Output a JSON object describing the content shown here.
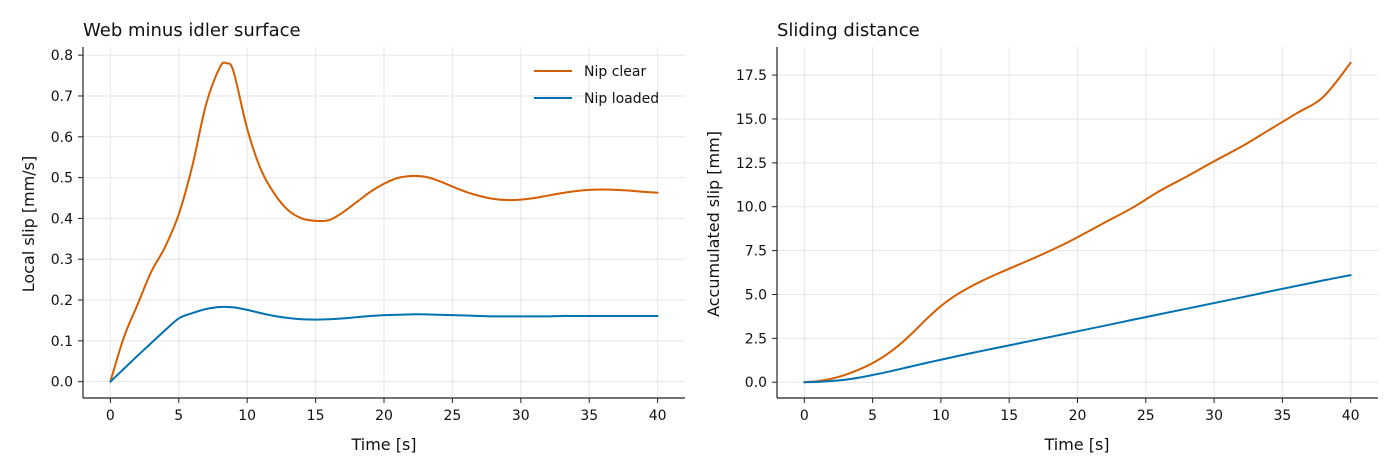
{
  "chart_data": [
    {
      "type": "line",
      "title": "Web minus idler surface",
      "xlabel": "Time [s]",
      "ylabel": "Local slip [mm/s]",
      "xlim": [
        -2,
        42
      ],
      "ylim": [
        -0.04,
        0.82
      ],
      "xticks": [
        0,
        5,
        10,
        15,
        20,
        25,
        30,
        35,
        40
      ],
      "yticks": [
        0.0,
        0.1,
        0.2,
        0.3,
        0.4,
        0.5,
        0.6,
        0.7,
        0.8
      ],
      "ytick_decimals": 1,
      "grid": true,
      "legend": "top-right",
      "series": [
        {
          "name": "Nip clear",
          "color": "#d55e00",
          "x": [
            0,
            1,
            2,
            3,
            4,
            5,
            6,
            7,
            8,
            8.5,
            9,
            10,
            11,
            12,
            13,
            14,
            15,
            16,
            17,
            18,
            19,
            20,
            21,
            22,
            23,
            24,
            25,
            26,
            27,
            28,
            29,
            30,
            31,
            32,
            33,
            34,
            35,
            36,
            37,
            38,
            39,
            40
          ],
          "y": [
            0.0,
            0.11,
            0.19,
            0.27,
            0.33,
            0.41,
            0.53,
            0.68,
            0.77,
            0.78,
            0.76,
            0.62,
            0.52,
            0.46,
            0.42,
            0.4,
            0.394,
            0.396,
            0.415,
            0.44,
            0.465,
            0.485,
            0.499,
            0.504,
            0.502,
            0.492,
            0.478,
            0.465,
            0.455,
            0.448,
            0.445,
            0.446,
            0.45,
            0.456,
            0.462,
            0.467,
            0.47,
            0.471,
            0.47,
            0.468,
            0.465,
            0.463
          ]
        },
        {
          "name": "Nip loaded",
          "color": "#0072b2",
          "x": [
            0,
            1,
            2,
            3,
            4,
            5,
            6,
            7,
            8,
            9,
            10,
            11,
            12,
            13,
            14,
            15,
            16,
            17,
            18,
            19,
            20,
            21,
            22,
            23,
            24,
            25,
            26,
            27,
            28,
            29,
            30,
            31,
            32,
            33,
            34,
            35,
            36,
            37,
            38,
            39,
            40
          ],
          "y": [
            0.0,
            0.032,
            0.064,
            0.095,
            0.126,
            0.155,
            0.168,
            0.178,
            0.183,
            0.182,
            0.176,
            0.168,
            0.161,
            0.156,
            0.153,
            0.152,
            0.153,
            0.155,
            0.158,
            0.161,
            0.163,
            0.164,
            0.165,
            0.165,
            0.164,
            0.163,
            0.162,
            0.161,
            0.16,
            0.16,
            0.16,
            0.16,
            0.16,
            0.161,
            0.161,
            0.161,
            0.161,
            0.161,
            0.161,
            0.161,
            0.161
          ]
        }
      ]
    },
    {
      "type": "line",
      "title": "Sliding distance",
      "xlabel": "Time [s]",
      "ylabel": "Accumulated slip [mm]",
      "xlim": [
        -2,
        42
      ],
      "ylim": [
        -0.9,
        19.1
      ],
      "xticks": [
        0,
        5,
        10,
        15,
        20,
        25,
        30,
        35,
        40
      ],
      "yticks": [
        0.0,
        2.5,
        5.0,
        7.5,
        10.0,
        12.5,
        15.0,
        17.5
      ],
      "ytick_decimals": 1,
      "grid": true,
      "legend": "none",
      "series": [
        {
          "name": "Nip clear",
          "color": "#d55e00",
          "x": [
            0,
            1,
            2,
            3,
            4,
            5,
            6,
            7,
            8,
            9,
            10,
            11,
            12,
            13,
            14,
            15,
            16,
            17,
            18,
            19,
            20,
            22,
            24,
            26,
            28,
            30,
            32,
            34,
            36,
            38,
            40
          ],
          "y": [
            0.0,
            0.06,
            0.2,
            0.42,
            0.72,
            1.09,
            1.56,
            2.16,
            2.87,
            3.64,
            4.34,
            4.91,
            5.37,
            5.77,
            6.13,
            6.47,
            6.8,
            7.14,
            7.49,
            7.86,
            8.26,
            9.1,
            9.93,
            10.89,
            11.72,
            12.59,
            13.42,
            14.36,
            15.3,
            16.26,
            18.2
          ]
        },
        {
          "name": "Nip loaded",
          "color": "#0072b2",
          "x": [
            0,
            1,
            2,
            3,
            4,
            5,
            6,
            7,
            8,
            9,
            10,
            12,
            14,
            16,
            18,
            20,
            22,
            24,
            26,
            28,
            30,
            32,
            34,
            36,
            38,
            40
          ],
          "y": [
            0.0,
            0.02,
            0.07,
            0.14,
            0.26,
            0.41,
            0.57,
            0.75,
            0.93,
            1.11,
            1.28,
            1.62,
            1.94,
            2.26,
            2.58,
            2.9,
            3.22,
            3.55,
            3.87,
            4.19,
            4.51,
            4.83,
            5.16,
            5.48,
            5.8,
            6.1
          ]
        }
      ]
    }
  ]
}
